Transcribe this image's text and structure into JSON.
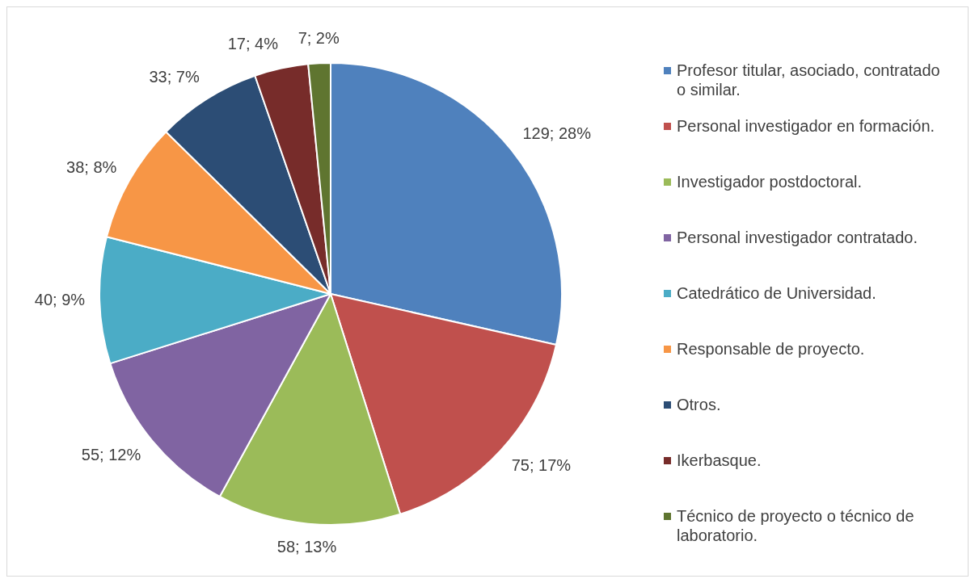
{
  "chart_data": {
    "type": "pie",
    "categories": [
      "Profesor titular, asociado, contratado o similar.",
      "Personal investigador en formación.",
      "Investigador postdoctoral.",
      "Personal investigador contratado.",
      "Catedrático de Universidad.",
      "Responsable de proyecto.",
      "Otros.",
      "Ikerbasque.",
      "Técnico de proyecto o técnico de laboratorio."
    ],
    "values": [
      129,
      75,
      58,
      55,
      40,
      38,
      33,
      17,
      7
    ],
    "value_labels": [
      "129; 28%",
      "75; 17%",
      "58; 13%",
      "55; 12%",
      "40; 9%",
      "38; 8%",
      "33; 7%",
      "17; 4%",
      "7; 2%"
    ],
    "colors": [
      "#4f81bd",
      "#c0504d",
      "#9bbb59",
      "#8064a2",
      "#4bacc6",
      "#f79646",
      "#2c4d75",
      "#772c2a",
      "#5f7530"
    ],
    "legend": "right"
  }
}
